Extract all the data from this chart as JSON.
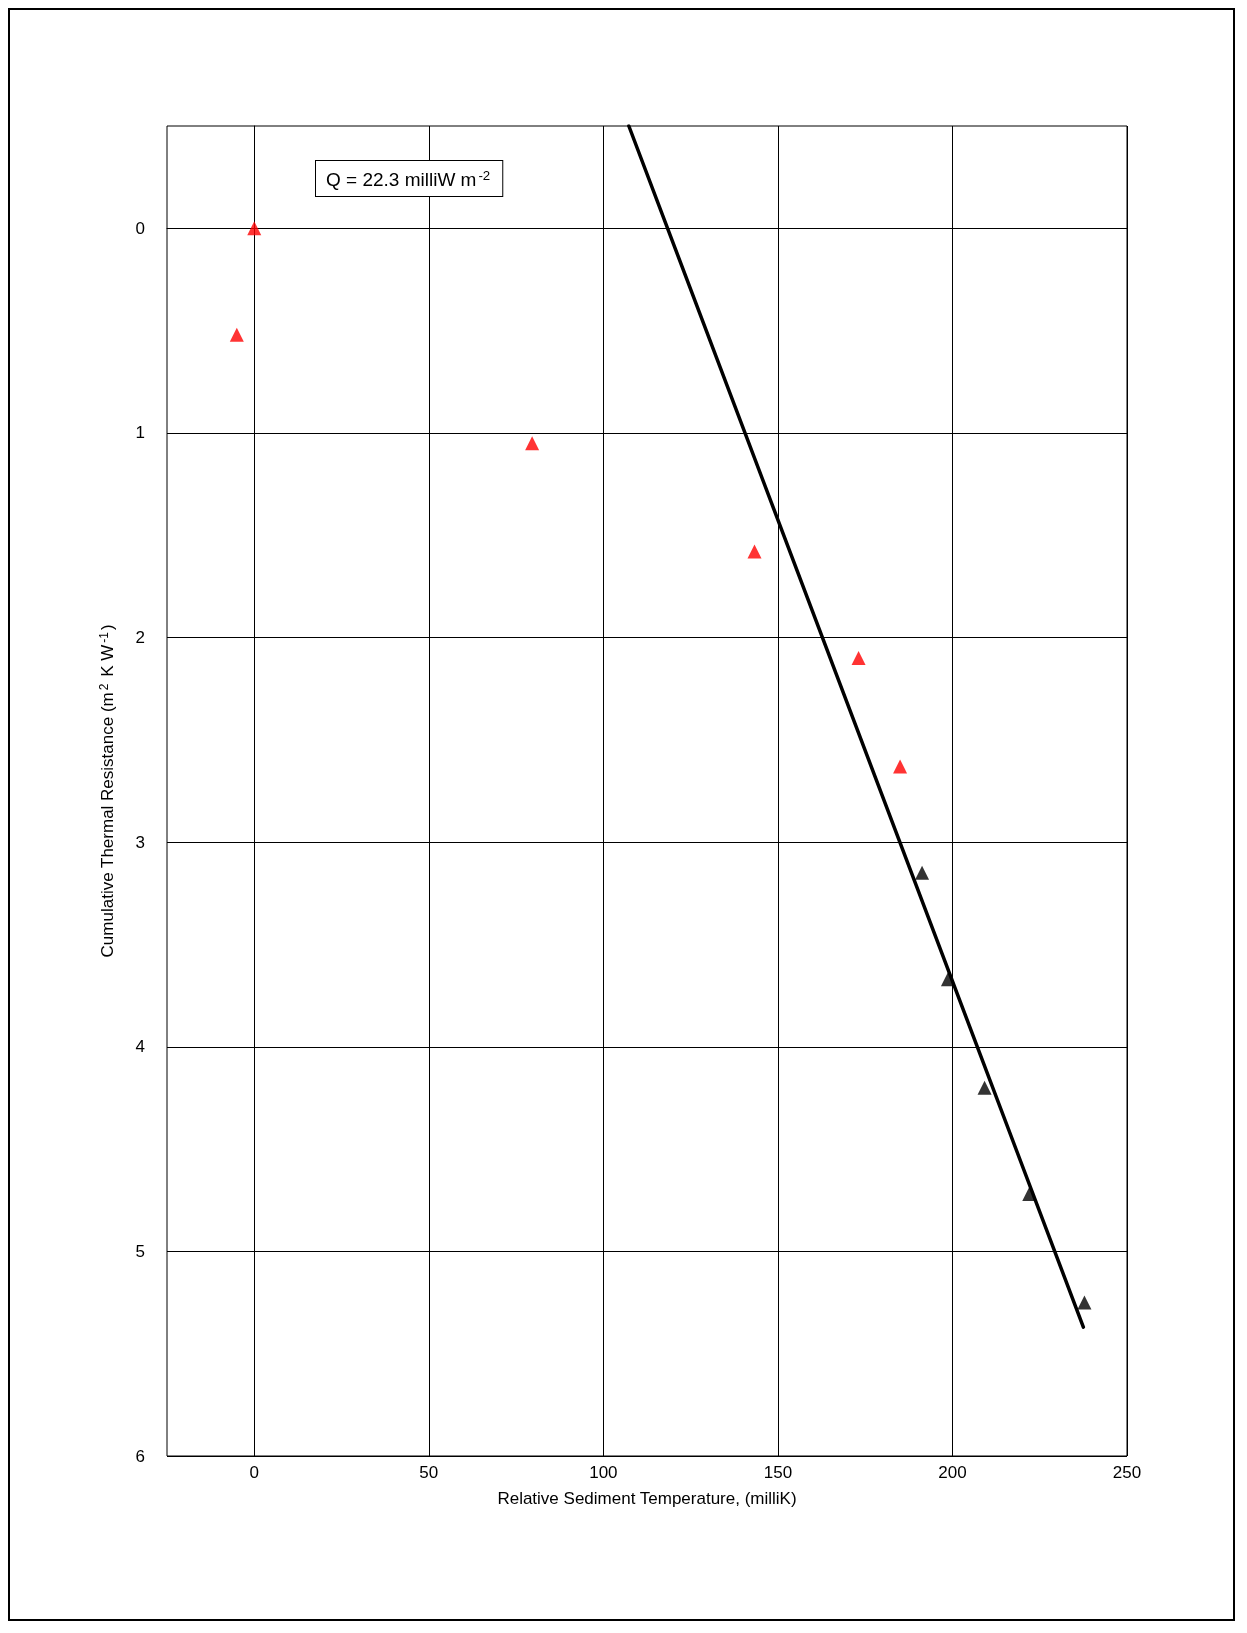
{
  "chart_data": {
    "type": "scatter",
    "xlabel": "Relative Sediment Temperature, (milliK)",
    "ylabel": "Cumulative Thermal Resistance (m$^{2}$ K W$^{-1}$)",
    "annotations": [
      "Q = 22.3 milliW m$^{-2}$"
    ],
    "xlim": [
      -25,
      250
    ],
    "xticks": [
      0,
      50,
      100,
      150,
      200,
      250
    ],
    "ylim": [
      6,
      -0.5
    ],
    "yticks": [
      0,
      1,
      2,
      3,
      4,
      5,
      6
    ],
    "grid": true,
    "marker": "triangle",
    "series": [
      {
        "type": "scatter",
        "color": "#ff0000",
        "x": [
          0,
          -5,
          79.6,
          143.3,
          173.1,
          185
        ],
        "values": [
          0,
          0.52,
          1.05,
          1.58,
          2.1,
          2.63
        ]
      },
      {
        "type": "scatter",
        "color": "#000000",
        "x": [
          191.3,
          198.7,
          209.2,
          222,
          237.8
        ],
        "values": [
          3.15,
          3.67,
          4.2,
          4.72,
          5.25
        ]
      },
      {
        "type": "line",
        "marker": "none",
        "color": "#000000",
        "x": [
          107.3,
          237.5
        ],
        "values": [
          -0.5,
          5.37
        ]
      }
    ]
  }
}
